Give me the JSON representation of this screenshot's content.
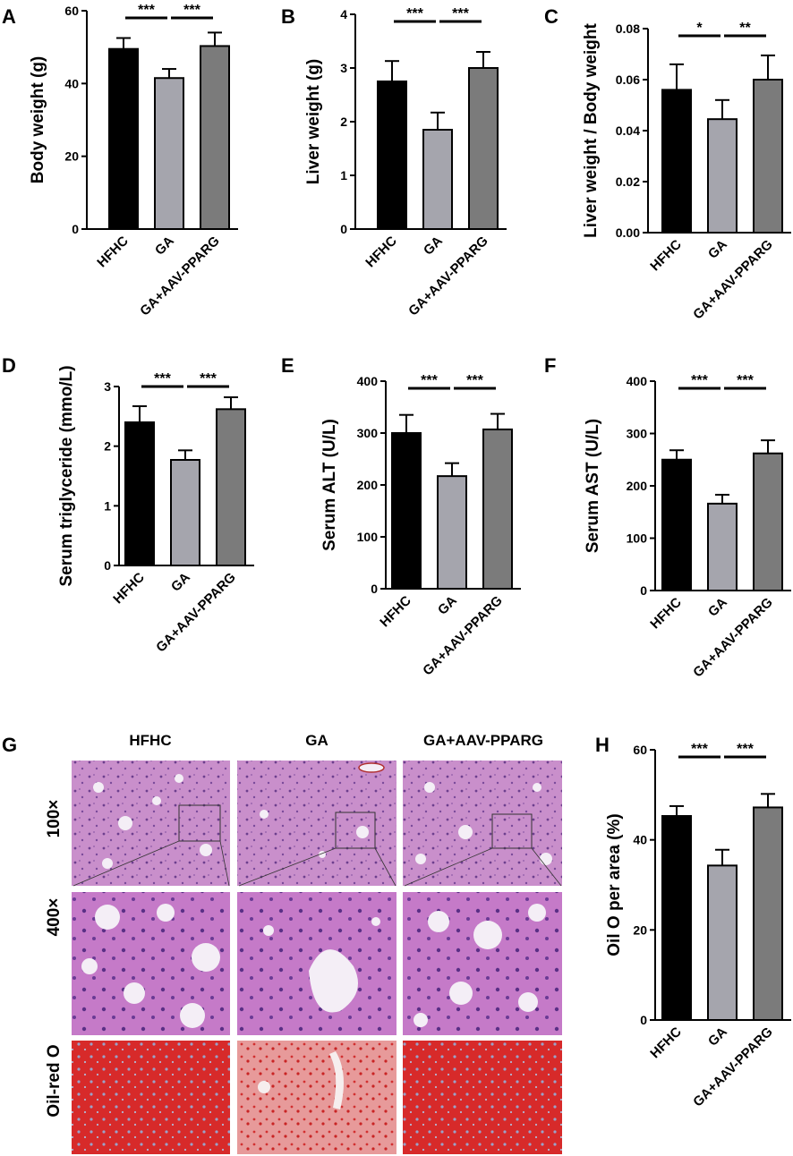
{
  "colors": {
    "HFHC": "#000000",
    "GA": "#a5a5ad",
    "GA+AAV-PPARG": "#7b7b7b",
    "text": "#000000"
  },
  "chart_data": [
    {
      "panel": "A",
      "type": "bar",
      "categories": [
        "HFHC",
        "GA",
        "GA+AAV-PPARG"
      ],
      "values": [
        49.5,
        41.5,
        50.3
      ],
      "errors": [
        3.0,
        2.5,
        3.7
      ],
      "ylabel": "Body weight (g)",
      "ylim": [
        0,
        60
      ],
      "yticks": [
        "0",
        "20",
        "40",
        "60"
      ],
      "significance": [
        "***",
        "***"
      ]
    },
    {
      "panel": "B",
      "type": "bar",
      "categories": [
        "HFHC",
        "GA",
        "GA+AAV-PPARG"
      ],
      "values": [
        2.75,
        1.85,
        3.0
      ],
      "errors": [
        0.38,
        0.32,
        0.3
      ],
      "ylabel": "Liver weight (g)",
      "ylim": [
        0,
        4
      ],
      "yticks": [
        "0",
        "1",
        "2",
        "3",
        "4"
      ],
      "significance": [
        "***",
        "***"
      ]
    },
    {
      "panel": "C",
      "type": "bar",
      "categories": [
        "HFHC",
        "GA",
        "GA+AAV-PPARG"
      ],
      "values": [
        0.056,
        0.0445,
        0.06
      ],
      "errors": [
        0.01,
        0.0075,
        0.0095
      ],
      "ylabel": "Liver weight / Body weight",
      "ylim": [
        0,
        0.08
      ],
      "yticks": [
        "0.00",
        "0.02",
        "0.04",
        "0.06",
        "0.08"
      ],
      "significance": [
        "*",
        "**"
      ]
    },
    {
      "panel": "D",
      "type": "bar",
      "categories": [
        "HFHC",
        "GA",
        "GA+AAV-PPARG"
      ],
      "values": [
        2.4,
        1.77,
        2.62
      ],
      "errors": [
        0.27,
        0.16,
        0.2
      ],
      "ylabel": "Serum triglyceride (mmo/L)",
      "ylim": [
        0,
        3
      ],
      "yticks": [
        "0",
        "1",
        "2",
        "3"
      ],
      "significance": [
        "***",
        "***"
      ]
    },
    {
      "panel": "E",
      "type": "bar",
      "categories": [
        "HFHC",
        "GA",
        "GA+AAV-PPARG"
      ],
      "values": [
        300,
        217,
        307
      ],
      "errors": [
        35,
        25,
        30
      ],
      "ylabel": "Serum ALT (U/L)",
      "ylim": [
        0,
        400
      ],
      "yticks": [
        "0",
        "100",
        "200",
        "300",
        "400"
      ],
      "significance": [
        "***",
        "***"
      ]
    },
    {
      "panel": "F",
      "type": "bar",
      "categories": [
        "HFHC",
        "GA",
        "GA+AAV-PPARG"
      ],
      "values": [
        250,
        166,
        262
      ],
      "errors": [
        18,
        17,
        25
      ],
      "ylabel": "Serum AST (U/L)",
      "ylim": [
        0,
        400
      ],
      "yticks": [
        "0",
        "100",
        "200",
        "300",
        "400"
      ],
      "significance": [
        "***",
        "***"
      ]
    },
    {
      "panel": "H",
      "type": "bar",
      "categories": [
        "HFHC",
        "GA",
        "GA+AAV-PPARG"
      ],
      "values": [
        45.3,
        34.3,
        47.2
      ],
      "errors": [
        2.2,
        3.5,
        3.0
      ],
      "ylabel": "Oil O per area (%)",
      "ylim": [
        0,
        60
      ],
      "yticks": [
        "0",
        "20",
        "40",
        "60"
      ],
      "significance": [
        "***",
        "***"
      ]
    }
  ],
  "histology": {
    "panel": "G",
    "columns": [
      "HFHC",
      "GA",
      "GA+AAV-PPARG"
    ],
    "rows": [
      "100×",
      "400×",
      "Oil-red O"
    ]
  }
}
